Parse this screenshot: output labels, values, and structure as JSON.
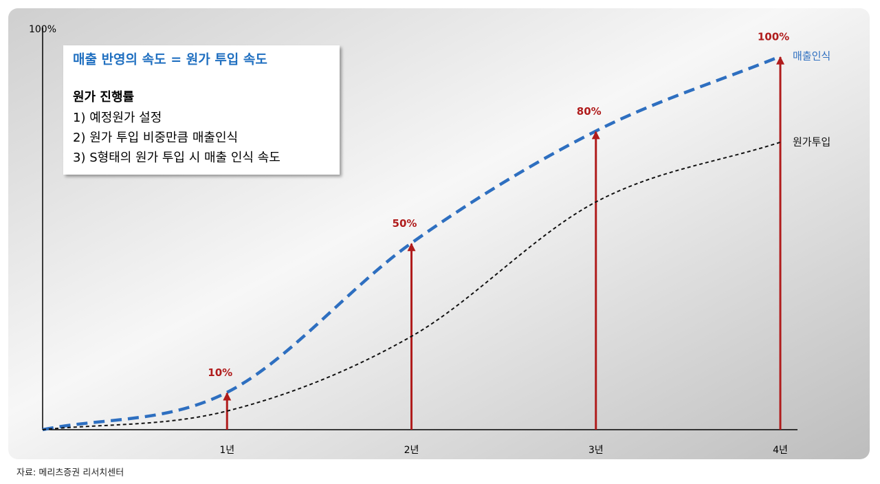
{
  "chart_data": {
    "type": "line",
    "y_label": "100%",
    "categories": [
      null,
      "1년",
      "2년",
      "3년",
      "4년"
    ],
    "series": [
      {
        "name": "매출인식",
        "color": "#2e6fc0",
        "values": [
          0,
          10,
          50,
          80,
          100
        ],
        "value_labels": [
          null,
          "10%",
          "50%",
          "80%",
          "100%"
        ],
        "arrow_color": "#b01c1c"
      },
      {
        "name": "원가투입",
        "color": "#111111",
        "values": [
          0,
          5,
          25,
          61,
          77
        ]
      }
    ],
    "ylim": [
      0,
      100
    ],
    "annotation": {
      "title": "매출 반영의 속도 = 원가 투입 속도",
      "heading": "원가 진행률",
      "items": [
        "1) 예정원가 설정",
        "2) 원가 투입 비중만큼 매출인식",
        "3) S형태의 원가 투입 시 매출 인식 속도"
      ]
    },
    "source": "자료: 메리츠증권 리서치센터"
  }
}
